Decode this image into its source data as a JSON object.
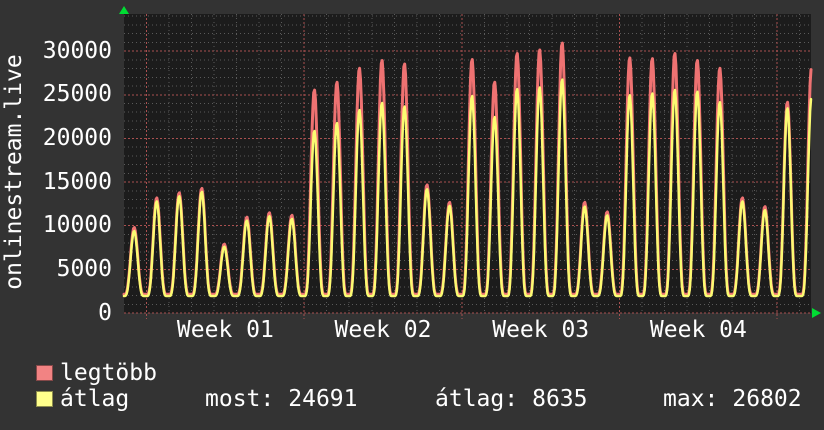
{
  "page": {
    "background": "#333333",
    "plot_background": "#1c1c1c"
  },
  "chart": {
    "vertical_title": "onlinestream.live",
    "arrow_color": "#00dd33",
    "grid": {
      "minor_color": "#5a5a5a",
      "major_color": "#aa5050"
    }
  },
  "chart_data": {
    "type": "line",
    "title": "onlinestream.live",
    "description": "Monthly viewer graph: one peak per day over ~31 days, troughs ~2000",
    "x_axis": {
      "week_labels": [
        "Week 01",
        "Week 02",
        "Week 03",
        "Week 04"
      ],
      "days": 31,
      "week_line_days": [
        1,
        8,
        15,
        22,
        29
      ]
    },
    "y_axis": {
      "ticks": [
        0,
        5000,
        10000,
        15000,
        20000,
        25000,
        30000
      ],
      "minor_step": 1000,
      "major_step": 5000,
      "top_value": 34250
    },
    "series": [
      {
        "name": "legtöbb",
        "color": "#ee7272",
        "baseline": 2150,
        "daily_peak_values": [
          9800,
          13200,
          13800,
          14300,
          7900,
          11000,
          11500,
          11200,
          25600,
          26500,
          28100,
          29000,
          28600,
          14700,
          12700,
          29100,
          26500,
          29800,
          30200,
          31000,
          12700,
          11600,
          29300,
          29200,
          29800,
          29000,
          28100,
          13200,
          12200,
          24200,
          28100
        ]
      },
      {
        "name": "átlag",
        "color": "#fbfb72",
        "baseline": 1950,
        "daily_peak_values": [
          9400,
          12800,
          13400,
          13900,
          7600,
          10600,
          11100,
          10800,
          20900,
          21800,
          23300,
          24100,
          23700,
          14200,
          12300,
          24900,
          22500,
          25700,
          25900,
          26802,
          12200,
          11200,
          25000,
          25200,
          25600,
          25400,
          24200,
          12800,
          11800,
          23500,
          24691
        ]
      }
    ]
  },
  "legend": {
    "swatches": [
      "#f28383",
      "#ffff8c"
    ]
  },
  "stats": [
    {
      "label": "most:",
      "value": "24691"
    },
    {
      "label": "átlag:",
      "value": "8635"
    },
    {
      "label": "max:",
      "value": "26802"
    }
  ]
}
